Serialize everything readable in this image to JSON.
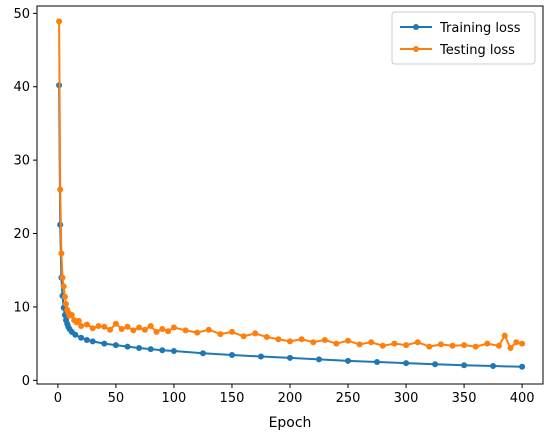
{
  "chart_data": {
    "type": "line",
    "title": "",
    "xlabel": "Epoch",
    "ylabel": "",
    "xlim": [
      -18,
      418
    ],
    "ylim": [
      -0.5,
      51
    ],
    "xticks": [
      0,
      50,
      100,
      150,
      200,
      250,
      300,
      350,
      400
    ],
    "yticks": [
      0,
      10,
      20,
      30,
      40,
      50
    ],
    "grid": false,
    "legend": {
      "position": "top-right"
    },
    "series": [
      {
        "name": "Training loss",
        "color": "#1f77b4",
        "marker": "circle",
        "x": [
          1,
          2,
          3,
          4,
          5,
          6,
          7,
          8,
          9,
          10,
          12,
          15,
          20,
          25,
          30,
          40,
          50,
          60,
          70,
          80,
          90,
          100,
          125,
          150,
          175,
          200,
          225,
          250,
          275,
          300,
          325,
          350,
          375,
          400
        ],
        "values": [
          40.2,
          21.2,
          14.0,
          11.5,
          9.9,
          8.9,
          8.2,
          7.7,
          7.3,
          7.0,
          6.6,
          6.2,
          5.8,
          5.5,
          5.3,
          5.0,
          4.8,
          4.6,
          4.4,
          4.25,
          4.1,
          4.0,
          3.7,
          3.45,
          3.25,
          3.05,
          2.85,
          2.65,
          2.5,
          2.35,
          2.2,
          2.05,
          1.95,
          1.85
        ]
      },
      {
        "name": "Testing loss",
        "color": "#ff7f0e",
        "marker": "circle",
        "x": [
          1,
          2,
          3,
          4,
          5,
          6,
          7,
          8,
          9,
          10,
          12,
          14,
          16,
          18,
          20,
          25,
          30,
          35,
          40,
          45,
          50,
          55,
          60,
          65,
          70,
          75,
          80,
          85,
          90,
          95,
          100,
          110,
          120,
          130,
          140,
          150,
          160,
          170,
          180,
          190,
          200,
          210,
          220,
          230,
          240,
          250,
          260,
          270,
          280,
          290,
          300,
          310,
          320,
          330,
          340,
          350,
          360,
          370,
          380,
          385,
          390,
          395,
          400
        ],
        "values": [
          48.9,
          26.0,
          17.3,
          14.0,
          12.8,
          11.4,
          10.4,
          9.6,
          9.2,
          8.8,
          8.9,
          8.2,
          7.9,
          8.1,
          7.4,
          7.6,
          7.1,
          7.4,
          7.3,
          6.9,
          7.7,
          7.0,
          7.3,
          6.8,
          7.2,
          6.9,
          7.4,
          6.6,
          7.0,
          6.7,
          7.2,
          6.8,
          6.5,
          6.9,
          6.3,
          6.6,
          6.0,
          6.4,
          5.9,
          5.6,
          5.3,
          5.6,
          5.2,
          5.5,
          5.0,
          5.4,
          4.9,
          5.2,
          4.7,
          5.0,
          4.8,
          5.2,
          4.6,
          4.9,
          4.7,
          4.8,
          4.6,
          5.0,
          4.7,
          6.1,
          4.4,
          5.2,
          5.0
        ]
      }
    ]
  }
}
